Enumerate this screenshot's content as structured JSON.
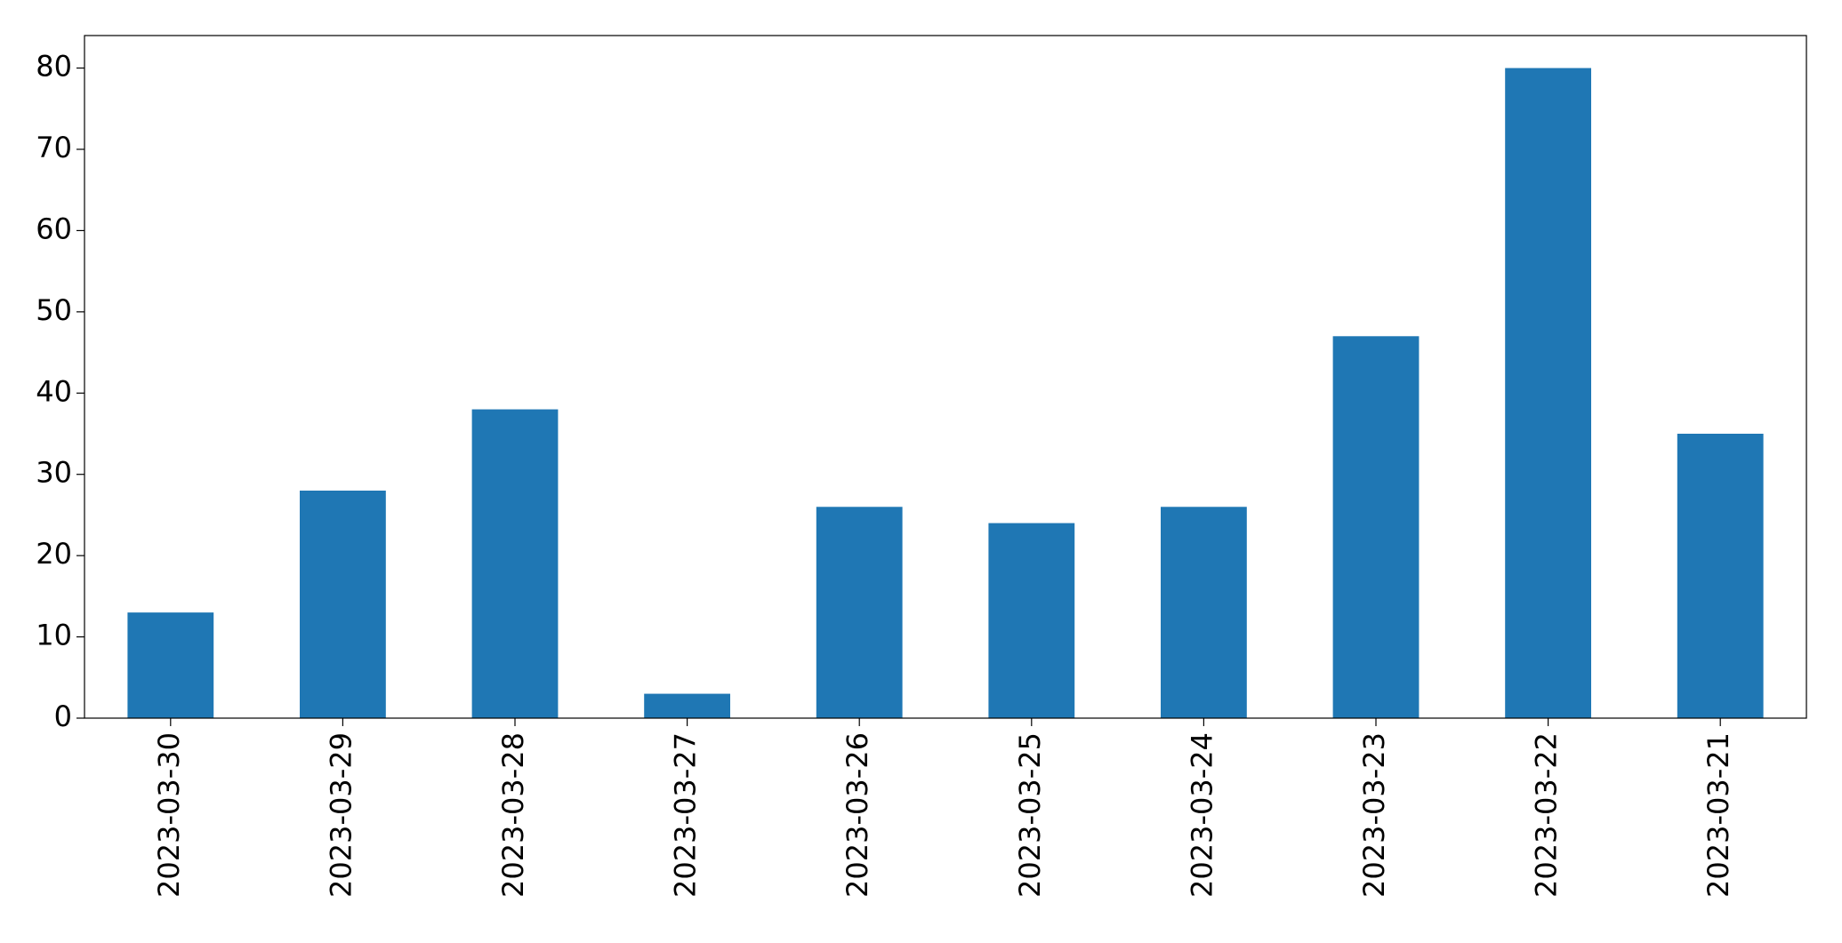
{
  "chart_data": {
    "type": "bar",
    "categories": [
      "2023-03-30",
      "2023-03-29",
      "2023-03-28",
      "2023-03-27",
      "2023-03-26",
      "2023-03-25",
      "2023-03-24",
      "2023-03-23",
      "2023-03-22",
      "2023-03-21"
    ],
    "values": [
      13,
      28,
      38,
      3,
      26,
      24,
      26,
      47,
      80,
      35
    ],
    "color": "#1f77b4",
    "ylim": [
      0,
      84
    ],
    "yticks": [
      0,
      10,
      20,
      30,
      40,
      50,
      60,
      70,
      80
    ],
    "grid": false
  }
}
